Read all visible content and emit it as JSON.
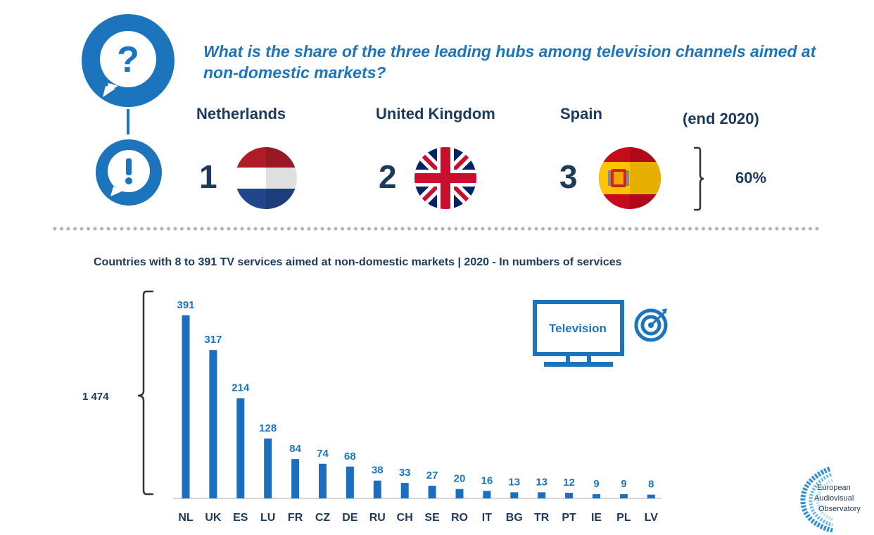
{
  "question": "What is the share of the three leading hubs among television channels aimed at non-domestic markets?",
  "leaders": [
    {
      "rank": "1",
      "country": "Netherlands",
      "flag": "netherlands-flag-icon"
    },
    {
      "rank": "2",
      "country": "United Kingdom",
      "flag": "uk-flag-icon"
    },
    {
      "rank": "3",
      "country": "Spain",
      "flag": "spain-flag-icon"
    }
  ],
  "period": "(end 2020)",
  "share": "60%",
  "colors": {
    "accent": "#1c75bc",
    "dark": "#1b3a5c",
    "bar": "#1a6fc0"
  },
  "television_label": "Television",
  "logo": {
    "line1": "European",
    "line2": "Audiovisual",
    "line3": "Observatory"
  },
  "chart_data": {
    "type": "bar",
    "title": "Countries with 8 to 391 TV services aimed at non-domestic markets | 2020 - In numbers of services",
    "categories": [
      "NL",
      "UK",
      "ES",
      "LU",
      "FR",
      "CZ",
      "DE",
      "RU",
      "CH",
      "SE",
      "RO",
      "IT",
      "BG",
      "TR",
      "PT",
      "IE",
      "PL",
      "LV"
    ],
    "values": [
      391,
      317,
      214,
      128,
      84,
      74,
      68,
      38,
      33,
      27,
      20,
      16,
      13,
      13,
      12,
      9,
      9,
      8
    ],
    "xlabel": "",
    "ylabel": "",
    "ylim": [
      0,
      391
    ],
    "bracket_total_label": "1 474",
    "grid": false
  }
}
